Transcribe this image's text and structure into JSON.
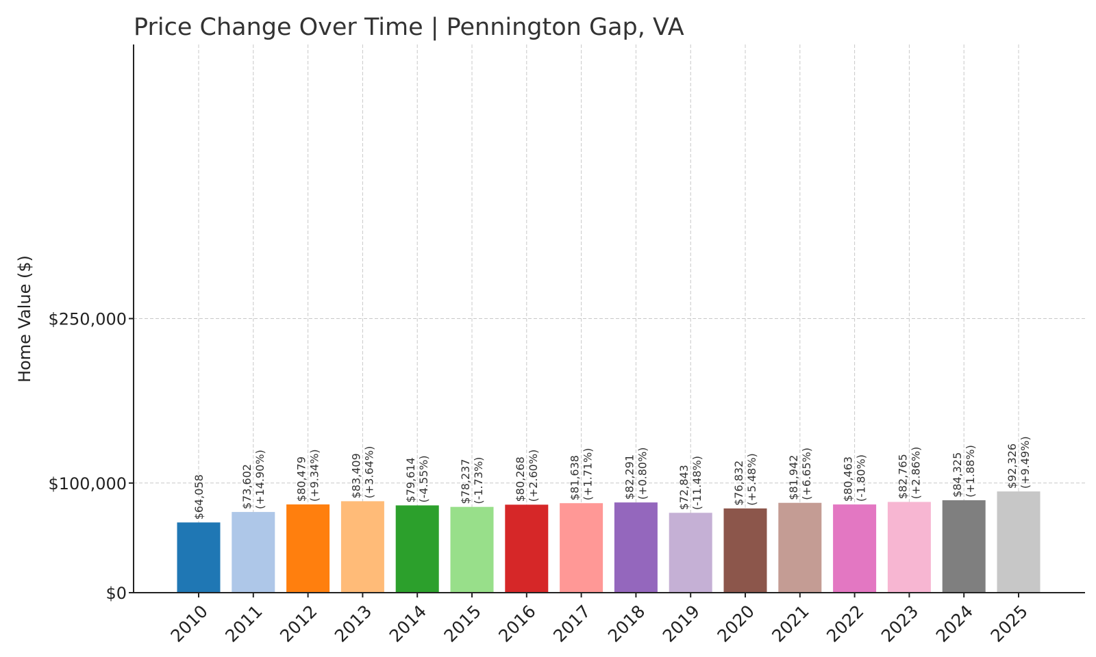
{
  "chart_data": {
    "type": "bar",
    "title": "Price Change Over Time | Pennington Gap, VA",
    "xlabel": "",
    "ylabel": "Home Value ($)",
    "ylim": [
      0,
      500000
    ],
    "yticks": [
      {
        "value": 0,
        "label": "$0"
      },
      {
        "value": 100000,
        "label": "$100,000"
      },
      {
        "value": 250000,
        "label": "$250,000"
      }
    ],
    "grid": true,
    "categories": [
      "2010",
      "2011",
      "2012",
      "2013",
      "2014",
      "2015",
      "2016",
      "2017",
      "2018",
      "2019",
      "2020",
      "2021",
      "2022",
      "2023",
      "2024",
      "2025"
    ],
    "values": [
      64058,
      73602,
      80479,
      83409,
      79614,
      78237,
      80268,
      81638,
      82291,
      72843,
      76832,
      81942,
      80463,
      82765,
      84325,
      92326
    ],
    "value_labels": [
      "$64,058",
      "$73,602",
      "$80,479",
      "$83,409",
      "$79,614",
      "$78,237",
      "$80,268",
      "$81,638",
      "$82,291",
      "$72,843",
      "$76,832",
      "$81,942",
      "$80,463",
      "$82,765",
      "$84,325",
      "$92,326"
    ],
    "change_labels": [
      "",
      "(+14.90%)",
      "(+9.34%)",
      "(+3.64%)",
      "(-4.55%)",
      "(-1.73%)",
      "(+2.60%)",
      "(+1.71%)",
      "(+0.80%)",
      "(-11.48%)",
      "(+5.48%)",
      "(+6.65%)",
      "(-1.80%)",
      "(+2.86%)",
      "(+1.88%)",
      "(+9.49%)"
    ],
    "colors": [
      "#1f77b4",
      "#aec7e8",
      "#ff7f0e",
      "#ffbb78",
      "#2ca02c",
      "#98df8a",
      "#d62728",
      "#ff9896",
      "#9467bd",
      "#c5b0d5",
      "#8c564b",
      "#c49c94",
      "#e377c2",
      "#f7b6d2",
      "#7f7f7f",
      "#c7c7c7"
    ]
  }
}
